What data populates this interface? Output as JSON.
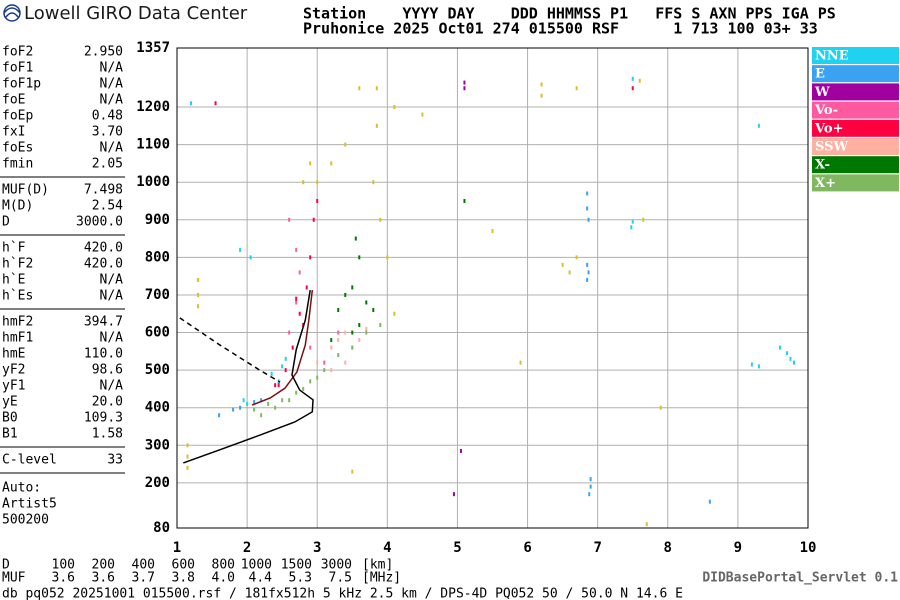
{
  "header": {
    "logo": "Lowell GIRO Data Center",
    "row1": "Station    YYYY DAY    DDD HHMMSS P1   FFS S AXN PPS IGA PS",
    "row2": "Pruhonice 2025 Oct01 274 015500 RSF      1 713 100 03+ 33"
  },
  "parameters": [
    [
      {
        "name": "foF2",
        "value": "2.950"
      },
      {
        "name": "foF1",
        "value": "N/A"
      },
      {
        "name": "foF1p",
        "value": "N/A"
      },
      {
        "name": "foE",
        "value": "N/A"
      },
      {
        "name": "foEp",
        "value": "0.48"
      },
      {
        "name": "fxI",
        "value": "3.70"
      },
      {
        "name": "foEs",
        "value": "N/A"
      },
      {
        "name": "fmin",
        "value": "2.05"
      }
    ],
    [
      {
        "name": "MUF(D)",
        "value": "7.498"
      },
      {
        "name": "M(D)",
        "value": "2.54"
      },
      {
        "name": "D",
        "value": "3000.0"
      }
    ],
    [
      {
        "name": "h`F",
        "value": "420.0"
      },
      {
        "name": "h`F2",
        "value": "420.0"
      },
      {
        "name": "h`E",
        "value": "N/A"
      },
      {
        "name": "h`Es",
        "value": "N/A"
      }
    ],
    [
      {
        "name": "hmF2",
        "value": "394.7"
      },
      {
        "name": "hmF1",
        "value": "N/A"
      },
      {
        "name": "hmE",
        "value": "110.0"
      },
      {
        "name": "yF2",
        "value": "98.6"
      },
      {
        "name": "yF1",
        "value": "N/A"
      },
      {
        "name": "yE",
        "value": "20.0"
      },
      {
        "name": "B0",
        "value": "109.3"
      },
      {
        "name": "B1",
        "value": "1.58"
      }
    ],
    [
      {
        "name": "C-level",
        "value": "33"
      }
    ]
  ],
  "auto": [
    "Auto:",
    "Artist5",
    "500200"
  ],
  "chart_data": {
    "type": "scatter",
    "xlim": [
      1,
      10
    ],
    "ylim": [
      80,
      1357
    ],
    "xticks": [
      1,
      2,
      3,
      4,
      5,
      6,
      7,
      8,
      9,
      10
    ],
    "yticks": [
      80,
      200,
      300,
      400,
      500,
      600,
      700,
      800,
      900,
      1000,
      1100,
      1200,
      1357
    ],
    "grid": true,
    "series": [
      {
        "name": "NNE",
        "color": "#1ed2f0",
        "x": [
          1.2,
          1.9,
          2.05,
          2.35,
          2.45,
          2.5,
          2.55,
          1.95,
          2.0,
          7.5,
          7.5,
          7.48,
          9.3,
          9.6,
          9.7,
          9.75,
          9.8,
          9.2,
          9.3
        ],
        "y": [
          1210,
          820,
          800,
          490,
          470,
          510,
          530,
          420,
          410,
          1275,
          895,
          880,
          1150,
          560,
          545,
          530,
          520,
          515,
          510
        ]
      },
      {
        "name": "E",
        "color": "#3aa2f0",
        "x": [
          6.85,
          6.85,
          6.87,
          6.85,
          6.87,
          6.85,
          6.9,
          6.9,
          6.88,
          1.8,
          1.9,
          2.1,
          2.2,
          1.6,
          8.6
        ],
        "y": [
          970,
          930,
          900,
          780,
          760,
          740,
          210,
          190,
          170,
          395,
          400,
          415,
          420,
          380,
          150
        ]
      },
      {
        "name": "W",
        "color": "#a000a0",
        "x": [
          5.1,
          5.1,
          5.05,
          4.95
        ],
        "y": [
          1265,
          1250,
          285,
          170
        ]
      },
      {
        "name": "Vo-",
        "color": "#ff5aa0",
        "x": [
          2.6,
          2.7,
          2.75,
          2.7,
          2.6,
          2.9,
          3.1,
          3.3
        ],
        "y": [
          900,
          820,
          760,
          680,
          600,
          560,
          520,
          600
        ]
      },
      {
        "name": "Vo+",
        "color": "#ff0040",
        "x": [
          2.7,
          2.75,
          2.8,
          2.85,
          2.9,
          2.95,
          3.0,
          2.65,
          2.55,
          2.45,
          1.55,
          7.5,
          2.4
        ],
        "y": [
          690,
          650,
          620,
          720,
          800,
          900,
          950,
          560,
          500,
          460,
          1210,
          1250,
          460
        ]
      },
      {
        "name": "SSW",
        "color": "#ffb0a0",
        "x": [
          3.2,
          3.3,
          3.4,
          3.5,
          3.6,
          3.7,
          3.4,
          3.2,
          3.0
        ],
        "y": [
          560,
          580,
          600,
          560,
          580,
          610,
          520,
          500,
          520
        ]
      },
      {
        "name": "X-",
        "color": "#007800",
        "x": [
          3.6,
          3.5,
          3.4,
          3.3,
          3.7,
          3.6,
          3.8,
          3.5,
          3.55,
          3.2,
          5.1
        ],
        "y": [
          800,
          720,
          700,
          660,
          680,
          620,
          660,
          600,
          850,
          580,
          950
        ]
      },
      {
        "name": "X+",
        "color": "#80b860",
        "x": [
          2.1,
          2.3,
          2.5,
          2.7,
          2.9,
          3.1,
          3.3,
          3.5,
          3.7,
          3.9,
          2.2,
          2.4,
          2.6,
          2.8,
          3.0
        ],
        "y": [
          395,
          410,
          420,
          440,
          470,
          500,
          540,
          560,
          600,
          620,
          380,
          400,
          420,
          450,
          480
        ]
      },
      {
        "color": "#d4c030",
        "x": [
          1.3,
          1.3,
          1.3,
          1.15,
          1.15,
          1.15,
          2.8,
          2.9,
          3.0,
          3.6,
          3.85,
          3.85,
          3.8,
          3.9,
          4.0,
          4.1,
          4.1,
          6.2,
          6.2,
          6.7,
          6.7,
          6.6,
          6.5,
          7.6,
          7.65,
          4.5,
          5.5,
          5.9,
          7.7,
          7.9,
          3.5,
          3.4,
          3.2
        ],
        "y": [
          740,
          700,
          670,
          300,
          270,
          240,
          1000,
          1050,
          1000,
          1250,
          1250,
          1150,
          1000,
          900,
          800,
          650,
          1200,
          1260,
          1230,
          1250,
          800,
          760,
          780,
          1270,
          900,
          1180,
          870,
          520,
          90,
          400,
          230,
          1100,
          1050
        ]
      }
    ],
    "lines": [
      {
        "color": "#7a1010",
        "dash": false,
        "x": [
          2.07,
          2.33,
          2.54,
          2.71,
          2.83,
          2.88,
          2.93
        ],
        "y": [
          407,
          426,
          452,
          495,
          567,
          633,
          713
        ]
      },
      {
        "color": "#000000",
        "dash": false,
        "x": [
          1.09,
          1.61,
          2.18,
          2.68,
          2.93,
          2.94,
          2.75,
          2.64,
          2.7,
          2.83,
          2.9
        ],
        "y": [
          253,
          288,
          327,
          362,
          389,
          421,
          447,
          487,
          554,
          633,
          713
        ]
      },
      {
        "color": "#000000",
        "dash": true,
        "x": [
          1.04,
          1.61,
          2.18,
          2.47
        ],
        "y": [
          639,
          567,
          500,
          468
        ]
      }
    ]
  },
  "footer": {
    "d_row": {
      "label": "D",
      "values": [
        "100",
        "200",
        "400",
        "600",
        "800",
        "1000",
        "1500",
        "3000"
      ],
      "unit": "[km]"
    },
    "muf_row": {
      "label": "MUF",
      "values": [
        "3.6",
        "3.6",
        "3.7",
        "3.8",
        "4.0",
        "4.4",
        "5.3",
        "7.5"
      ],
      "unit": "[MHz]"
    },
    "source": "db pq052 20251001 015500.rsf / 181fx512h 5 kHz 2.5 km / DPS-4D PQ052 50 / 50.0 N 14.6 E",
    "servlet": "DIDBasePortal_Servlet 0.1"
  }
}
